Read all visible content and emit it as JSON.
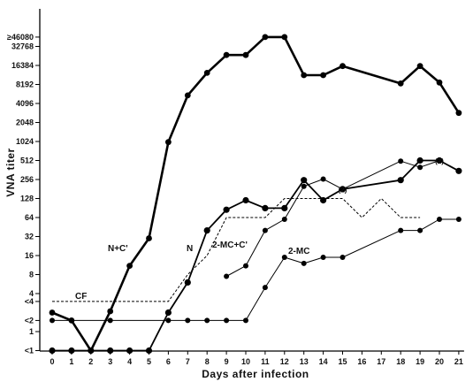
{
  "chart_data": {
    "type": "line",
    "xlabel": "Days after infection",
    "ylabel": "VNA titer",
    "y_scale": "log2",
    "xlim": [
      0,
      21
    ],
    "x_ticks": [
      0,
      1,
      2,
      3,
      4,
      5,
      6,
      7,
      8,
      9,
      10,
      11,
      12,
      13,
      14,
      15,
      16,
      17,
      18,
      19,
      20,
      21
    ],
    "y_ticks": [
      {
        "label": "<1",
        "value": 0.5
      },
      {
        "label": "1",
        "value": 1
      },
      {
        "label": "<2",
        "value": 1.5
      },
      {
        "label": "<4",
        "value": 3
      },
      {
        "label": "4",
        "value": 4
      },
      {
        "label": "8",
        "value": 8
      },
      {
        "label": "16",
        "value": 16
      },
      {
        "label": "32",
        "value": 32
      },
      {
        "label": "64",
        "value": 64
      },
      {
        "label": "128",
        "value": 128
      },
      {
        "label": "256",
        "value": 256
      },
      {
        "label": "512",
        "value": 512
      },
      {
        "label": "1024",
        "value": 1024
      },
      {
        "label": "2048",
        "value": 2048
      },
      {
        "label": "4096",
        "value": 4096
      },
      {
        "label": "8192",
        "value": 8192
      },
      {
        "label": "16384",
        "value": 16384
      },
      {
        "label": "32768",
        "value": 32768
      },
      {
        "label": "≥46080",
        "value": 46080
      }
    ],
    "series": [
      {
        "name": "N+C'",
        "style": "thick",
        "points": [
          [
            0,
            2
          ],
          [
            1,
            1.5
          ],
          [
            2,
            0.5
          ],
          [
            3,
            2.1
          ],
          [
            4,
            11
          ],
          [
            5,
            30
          ],
          [
            6,
            1000
          ],
          [
            7,
            5500
          ],
          [
            8,
            12500
          ],
          [
            9,
            24000
          ],
          [
            10,
            24000
          ],
          [
            11,
            46080
          ],
          [
            12,
            46080
          ],
          [
            13,
            11500
          ],
          [
            14,
            11500
          ],
          [
            15,
            16000
          ],
          [
            18,
            8500
          ],
          [
            19,
            16000
          ],
          [
            20,
            8800
          ],
          [
            21,
            2900
          ]
        ]
      },
      {
        "name": "N",
        "style": "medium",
        "points": [
          [
            0,
            0.5
          ],
          [
            1,
            0.5
          ],
          [
            2,
            0.5
          ],
          [
            3,
            0.5
          ],
          [
            4,
            0.5
          ],
          [
            5,
            0.5
          ],
          [
            6,
            2
          ],
          [
            7,
            6
          ],
          [
            8,
            40
          ],
          [
            9,
            85
          ],
          [
            10,
            120
          ],
          [
            11,
            90
          ],
          [
            12,
            90
          ],
          [
            13,
            250
          ],
          [
            14,
            120
          ],
          [
            15,
            180
          ],
          [
            18,
            250
          ],
          [
            19,
            512
          ],
          [
            20,
            512
          ],
          [
            21,
            350
          ]
        ]
      },
      {
        "name": "2-MC+C'",
        "style": "thin",
        "points": [
          [
            9,
            7.5
          ],
          [
            10,
            11
          ],
          [
            11,
            40
          ],
          [
            12,
            60
          ],
          [
            13,
            200
          ],
          [
            14,
            260
          ],
          [
            15,
            180
          ],
          [
            18,
            500
          ],
          [
            19,
            400
          ],
          [
            20,
            512
          ]
        ]
      },
      {
        "name": "2-MC",
        "style": "thin",
        "points": [
          [
            0,
            1.5
          ],
          [
            3,
            1.5
          ],
          [
            6,
            1.5
          ],
          [
            7,
            1.5
          ],
          [
            8,
            1.5
          ],
          [
            9,
            1.5
          ],
          [
            10,
            1.5
          ],
          [
            11,
            5
          ],
          [
            12,
            15
          ],
          [
            13,
            12
          ],
          [
            14,
            15
          ],
          [
            15,
            15
          ],
          [
            18,
            40
          ],
          [
            19,
            40
          ],
          [
            20,
            60
          ],
          [
            21,
            60
          ]
        ]
      },
      {
        "name": "CF",
        "style": "dashed",
        "points": [
          [
            0,
            3
          ],
          [
            6,
            3
          ],
          [
            7,
            8
          ],
          [
            8,
            16
          ],
          [
            9,
            64
          ],
          [
            10,
            64
          ],
          [
            11,
            64
          ],
          [
            12,
            128
          ],
          [
            13,
            128
          ],
          [
            14,
            128
          ],
          [
            15,
            128
          ],
          [
            16,
            64
          ],
          [
            17,
            128
          ],
          [
            18,
            64
          ],
          [
            19,
            64
          ]
        ]
      }
    ],
    "annotations": [
      {
        "text": "(2)",
        "x": 15,
        "y": 180
      },
      {
        "text": "(2)",
        "x": 20,
        "y": 512
      }
    ]
  }
}
